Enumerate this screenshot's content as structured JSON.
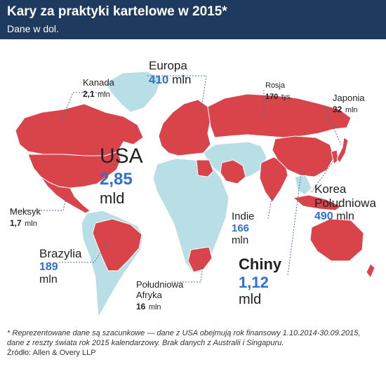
{
  "header": {
    "title": "Kary za praktyki kartelowe w 2015*",
    "subtitle": "Dane w dol."
  },
  "colors": {
    "header_bg": "#1f3a5f",
    "highlighted_country": "#d9434a",
    "other_country": "#b9dfe6",
    "value_blue": "#2f6fd1"
  },
  "labels": {
    "kanada": {
      "name": "Kanada",
      "value": "2,1",
      "unit": "mln"
    },
    "europa": {
      "name": "Europa",
      "value": "410",
      "unit": "mln"
    },
    "rosja": {
      "name": "Rosja",
      "value": "170",
      "unit": "tys."
    },
    "japonia": {
      "name": "Japonia",
      "value": "32",
      "unit": "mln"
    },
    "usa": {
      "name": "USA",
      "value": "2,85",
      "unit": "mld"
    },
    "korea": {
      "name1": "Korea",
      "name2": "Południowa",
      "value": "490",
      "unit": "mln"
    },
    "meksyk": {
      "name": "Meksyk",
      "value": "1,7",
      "unit": "mln"
    },
    "indie": {
      "name": "Indie",
      "value": "166",
      "unit": "mln"
    },
    "brazylia": {
      "name": "Brazylia",
      "value": "189",
      "unit": "mln"
    },
    "chiny": {
      "name": "Chiny",
      "value": "1,12",
      "unit": "mld"
    },
    "rpa": {
      "name1": "Południowa",
      "name2": "Afryka",
      "value": "16",
      "unit": "mln"
    }
  },
  "footnote": {
    "line1": "* Reprezentowane dane są szacunkowe — dane z USA obejmują rok finansowy 1.10.2014-30.09.2015,",
    "line2": "dane z reszty świata rok 2015 kalendarzowy. Brak danych z Australii i Singapuru.",
    "line3": "Źródło: Allen & Overy LLP"
  }
}
